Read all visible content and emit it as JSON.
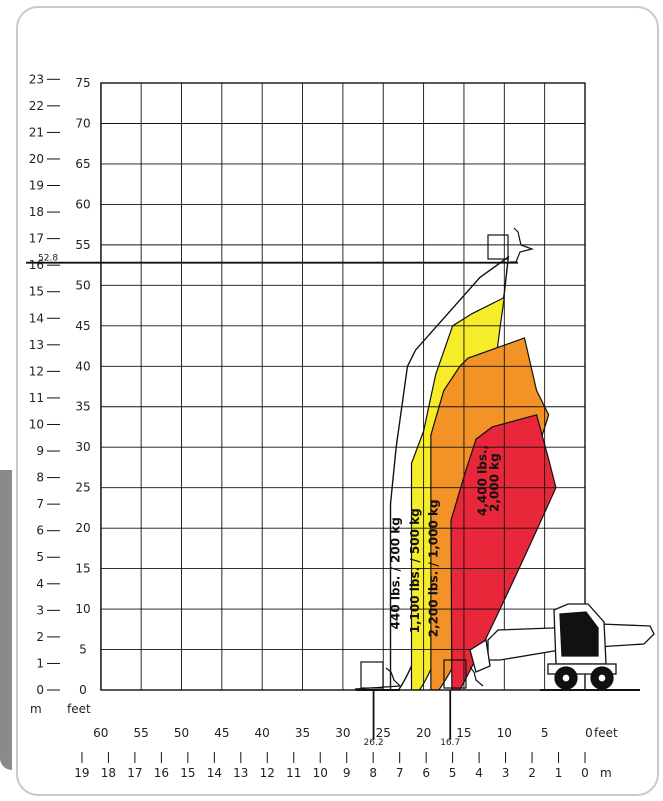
{
  "chart_data": {
    "type": "area",
    "title": "",
    "xlabel": "",
    "ylabel": "",
    "units": {
      "x_feet": "feet",
      "y_feet": "feet",
      "x_m": "m",
      "y_m": "m"
    },
    "x_feet_ticks": [
      60,
      55,
      50,
      45,
      40,
      35,
      30,
      25,
      20,
      15,
      10,
      5,
      0
    ],
    "x_m_ticks": [
      19,
      18,
      17,
      16,
      15,
      14,
      13,
      12,
      11,
      10,
      9,
      8,
      7,
      6,
      5,
      4,
      3,
      2,
      1,
      0
    ],
    "y_feet_ticks": [
      0,
      5,
      10,
      15,
      20,
      25,
      30,
      35,
      40,
      45,
      50,
      55,
      60,
      65,
      70,
      75
    ],
    "y_m_ticks": [
      0,
      1,
      2,
      3,
      4,
      5,
      6,
      7,
      8,
      9,
      10,
      11,
      12,
      13,
      14,
      15,
      16,
      17,
      18,
      19,
      20,
      21,
      22,
      23
    ],
    "xlim_feet": [
      63,
      0
    ],
    "ylim_feet": [
      0,
      75
    ],
    "annotations": {
      "max_height": "52.8",
      "max_height_value": 52.8,
      "reach_a": "26.2",
      "reach_a_value": 26.2,
      "reach_b": "16.7",
      "reach_b_value": 16.7
    },
    "series": [
      {
        "name": "440 lbs. / 200 kg",
        "color": "#ffffff",
        "outline": [
          [
            24.1,
            0
          ],
          [
            24.1,
            23
          ],
          [
            23.4,
            30
          ],
          [
            22,
            40
          ],
          [
            21,
            42
          ],
          [
            13,
            51
          ],
          [
            9.5,
            53.5
          ],
          [
            10,
            49
          ]
        ]
      },
      {
        "name": "1,100 lbs. / 500 kg",
        "color": "#f7ec2a",
        "outline": [
          [
            21.5,
            0
          ],
          [
            21.5,
            28
          ],
          [
            20,
            32
          ],
          [
            18.5,
            39
          ],
          [
            16.4,
            45
          ],
          [
            14,
            46.5
          ],
          [
            10,
            48.5
          ],
          [
            10.5,
            45
          ]
        ]
      },
      {
        "name": "2,200 lbs. / 1,000 kg",
        "color": "#f39226",
        "outline": [
          [
            19.1,
            0
          ],
          [
            19.1,
            31.5
          ],
          [
            17.5,
            37
          ],
          [
            15.5,
            40
          ],
          [
            14.5,
            41
          ],
          [
            7.5,
            43.5
          ],
          [
            6,
            37
          ],
          [
            4.5,
            34
          ]
        ]
      },
      {
        "name": "4,400 lbs. / 2,000 kg",
        "color": "#e8273a",
        "outline": [
          [
            16.5,
            0
          ],
          [
            16.6,
            21
          ],
          [
            14.8,
            27
          ],
          [
            13.5,
            31
          ],
          [
            11.5,
            32.5
          ],
          [
            6,
            34
          ],
          [
            4.5,
            28.5
          ],
          [
            3.6,
            25
          ]
        ]
      }
    ]
  }
}
